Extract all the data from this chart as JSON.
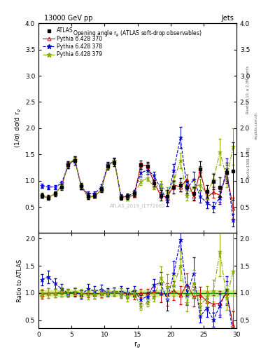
{
  "title_top": "13000 GeV pp",
  "title_right": "Jets",
  "plot_title": "Opening angle r$_g$ (ATLAS soft-drop observables)",
  "ylabel_main": "(1/σ) dσ/d r$_g$",
  "ylabel_ratio": "Ratio to ATLAS",
  "xlabel": "r$_g$",
  "right_label_top": "Rivet 3.1.10, ≥ 2.3M events",
  "right_label_bot": "[arXiv:1306.3436]",
  "right_label_mid": "mcplots.cern.ch",
  "watermark": "ATLAS_2019_I1772062",
  "xlim": [
    0,
    30
  ],
  "ylim_main": [
    0,
    4
  ],
  "ylim_ratio": [
    0.35,
    2.1
  ],
  "atlas_x": [
    0.5,
    1.5,
    2.5,
    3.5,
    4.5,
    5.5,
    6.5,
    7.5,
    8.5,
    9.5,
    10.5,
    11.5,
    12.5,
    13.5,
    14.5,
    15.5,
    16.5,
    17.5,
    18.5,
    19.5,
    20.5,
    21.5,
    22.5,
    23.5,
    24.5,
    25.5,
    26.5,
    27.5,
    28.5,
    29.5
  ],
  "atlas_y": [
    0.72,
    0.68,
    0.75,
    0.88,
    1.3,
    1.38,
    0.9,
    0.7,
    0.72,
    0.83,
    1.28,
    1.35,
    0.68,
    0.7,
    0.75,
    1.3,
    1.28,
    0.95,
    0.72,
    0.7,
    0.88,
    0.92,
    0.88,
    0.75,
    1.22,
    0.8,
    0.98,
    0.88,
    1.15,
    1.18
  ],
  "atlas_yerr": [
    0.05,
    0.05,
    0.05,
    0.06,
    0.07,
    0.08,
    0.06,
    0.05,
    0.05,
    0.05,
    0.07,
    0.08,
    0.05,
    0.05,
    0.05,
    0.08,
    0.08,
    0.06,
    0.1,
    0.12,
    0.12,
    0.13,
    0.12,
    0.12,
    0.15,
    0.12,
    0.15,
    0.18,
    0.2,
    0.55
  ],
  "py370_x": [
    0.5,
    1.5,
    2.5,
    3.5,
    4.5,
    5.5,
    6.5,
    7.5,
    8.5,
    9.5,
    10.5,
    11.5,
    12.5,
    13.5,
    14.5,
    15.5,
    16.5,
    17.5,
    18.5,
    19.5,
    20.5,
    21.5,
    22.5,
    23.5,
    24.5,
    25.5,
    26.5,
    27.5,
    28.5,
    29.5
  ],
  "py370_y": [
    0.7,
    0.68,
    0.75,
    0.9,
    1.3,
    1.4,
    0.88,
    0.7,
    0.7,
    0.83,
    1.28,
    1.38,
    0.68,
    0.7,
    0.72,
    1.3,
    1.28,
    0.97,
    0.72,
    0.68,
    0.92,
    0.88,
    1.02,
    0.7,
    1.18,
    0.68,
    0.78,
    0.72,
    1.15,
    0.48
  ],
  "py370_yerr": [
    0.03,
    0.03,
    0.03,
    0.04,
    0.05,
    0.05,
    0.04,
    0.03,
    0.03,
    0.04,
    0.05,
    0.05,
    0.03,
    0.03,
    0.03,
    0.05,
    0.05,
    0.04,
    0.06,
    0.08,
    0.08,
    0.09,
    0.1,
    0.08,
    0.1,
    0.09,
    0.1,
    0.12,
    0.15,
    0.2
  ],
  "py378_x": [
    0.5,
    1.5,
    2.5,
    3.5,
    4.5,
    5.5,
    6.5,
    7.5,
    8.5,
    9.5,
    10.5,
    11.5,
    12.5,
    13.5,
    14.5,
    15.5,
    16.5,
    17.5,
    18.5,
    19.5,
    20.5,
    21.5,
    22.5,
    23.5,
    24.5,
    25.5,
    26.5,
    27.5,
    28.5,
    29.5
  ],
  "py378_y": [
    0.9,
    0.88,
    0.88,
    0.95,
    1.3,
    1.4,
    0.88,
    0.75,
    0.75,
    0.88,
    1.3,
    1.38,
    0.7,
    0.7,
    0.78,
    1.15,
    1.2,
    1.1,
    0.85,
    0.62,
    1.2,
    1.82,
    0.85,
    1.02,
    0.7,
    0.58,
    0.5,
    0.68,
    1.22,
    0.25
  ],
  "py378_yerr": [
    0.04,
    0.04,
    0.04,
    0.05,
    0.06,
    0.06,
    0.04,
    0.04,
    0.04,
    0.05,
    0.06,
    0.06,
    0.04,
    0.04,
    0.04,
    0.07,
    0.07,
    0.07,
    0.09,
    0.1,
    0.12,
    0.2,
    0.12,
    0.15,
    0.12,
    0.1,
    0.1,
    0.12,
    0.2,
    0.12
  ],
  "py379_x": [
    0.5,
    1.5,
    2.5,
    3.5,
    4.5,
    5.5,
    6.5,
    7.5,
    8.5,
    9.5,
    10.5,
    11.5,
    12.5,
    13.5,
    14.5,
    15.5,
    16.5,
    17.5,
    18.5,
    19.5,
    20.5,
    21.5,
    22.5,
    23.5,
    24.5,
    25.5,
    26.5,
    27.5,
    28.5,
    29.5
  ],
  "py379_y": [
    0.72,
    0.68,
    0.75,
    0.9,
    1.32,
    1.42,
    0.9,
    0.68,
    0.7,
    0.82,
    1.28,
    1.38,
    0.68,
    0.65,
    0.75,
    0.98,
    1.05,
    0.88,
    0.92,
    0.78,
    1.0,
    1.38,
    0.72,
    0.88,
    0.92,
    0.75,
    1.02,
    1.55,
    1.05,
    1.65
  ],
  "py379_yerr": [
    0.03,
    0.03,
    0.03,
    0.04,
    0.05,
    0.05,
    0.04,
    0.03,
    0.03,
    0.04,
    0.05,
    0.05,
    0.03,
    0.03,
    0.03,
    0.06,
    0.06,
    0.05,
    0.08,
    0.09,
    0.1,
    0.15,
    0.1,
    0.12,
    0.12,
    0.1,
    0.12,
    0.25,
    0.18,
    0.35
  ],
  "atlas_band_err": 0.05,
  "color_atlas": "#000000",
  "color_py370": "#cc0000",
  "color_py378": "#0000cc",
  "color_py379": "#88aa00",
  "color_band": "#ccee88",
  "color_line": "#008800",
  "xticks": [
    0,
    5,
    10,
    15,
    20,
    25,
    30
  ],
  "yticks_main": [
    0.5,
    1.0,
    1.5,
    2.0,
    2.5,
    3.0,
    3.5,
    4.0
  ],
  "yticks_ratio": [
    0.5,
    1.0,
    1.5,
    2.0
  ]
}
